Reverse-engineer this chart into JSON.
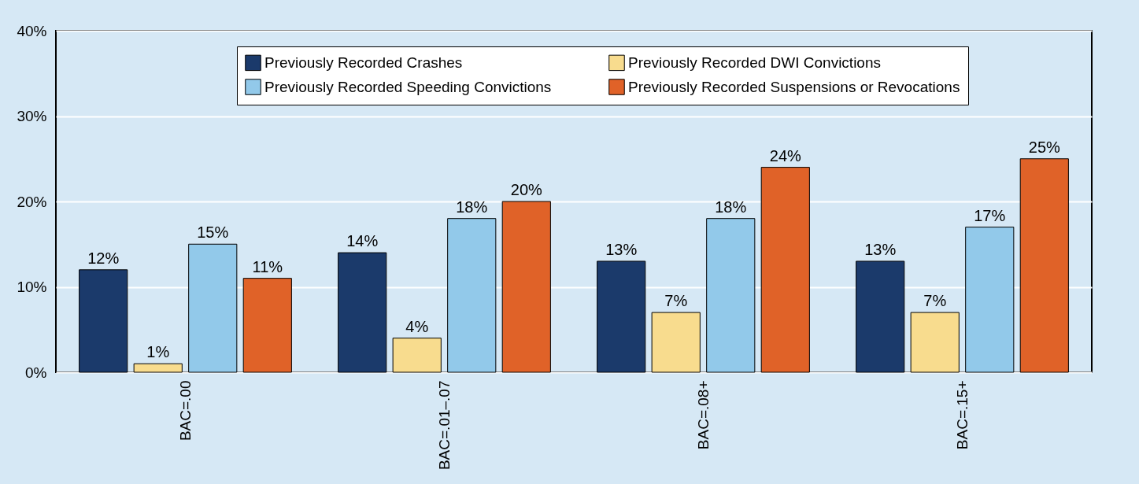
{
  "chart_data": {
    "type": "bar",
    "categories": [
      "BAC=.00",
      "BAC=.01–.07",
      "BAC=.08+",
      "BAC=.15+"
    ],
    "series": [
      {
        "name": "Previously Recorded Crashes",
        "color": "#1b3a6b",
        "values": [
          12,
          14,
          13,
          13
        ],
        "value_labels": [
          "12%",
          "14%",
          "13%",
          "13%"
        ]
      },
      {
        "name": "Previously Recorded DWI Convictions",
        "color": "#f8dc8e",
        "values": [
          1,
          4,
          7,
          7
        ],
        "value_labels": [
          "1%",
          "4%",
          "7%",
          "7%"
        ]
      },
      {
        "name": "Previously Recorded Speeding Convictions",
        "color": "#92c9ea",
        "values": [
          15,
          18,
          18,
          17
        ],
        "value_labels": [
          "15%",
          "18%",
          "18%",
          "17%"
        ]
      },
      {
        "name": "Previously Recorded Suspensions or Revocations",
        "color": "#e06228",
        "values": [
          11,
          20,
          24,
          25
        ],
        "value_labels": [
          "11%",
          "20%",
          "24%",
          "25%"
        ]
      }
    ],
    "ylim": [
      0,
      40
    ],
    "yticks": [
      {
        "value": 0,
        "label": "0%"
      },
      {
        "value": 10,
        "label": "10%"
      },
      {
        "value": 20,
        "label": "20%"
      },
      {
        "value": 30,
        "label": "30%"
      },
      {
        "value": 40,
        "label": "40%"
      }
    ],
    "grid": "y",
    "legend": "top"
  }
}
